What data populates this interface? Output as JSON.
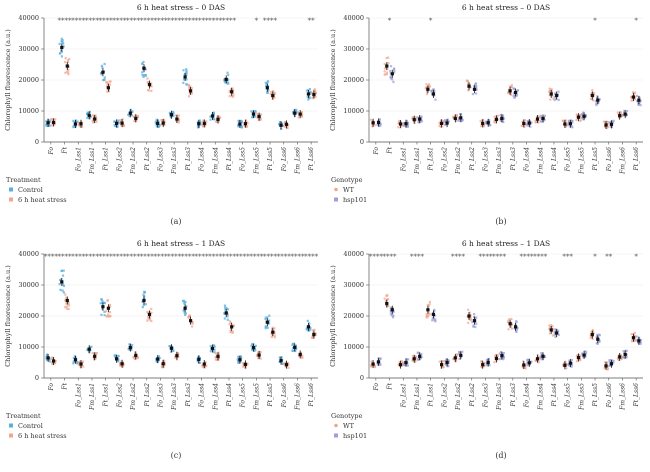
{
  "colors": {
    "control": "#5aaee0",
    "heat": "#f3a58e",
    "wt": "#f3a58e",
    "hsp101": "#9aa0d8",
    "mean": "#111111"
  },
  "chart_data": [
    {
      "type": "scatter",
      "panel_label": "(a)",
      "title": "6 h heat stress – 0 DAS",
      "ylabel": "Chlorophyll fluorescence (a.u.)",
      "ylim": [
        0,
        40000
      ],
      "yticks": [
        "0",
        "10000",
        "20000",
        "30000",
        "40000"
      ],
      "categories": [
        "Fo",
        "Ft",
        "Fo_Lss1",
        "Fm_Lss1",
        "Ft_Lss1",
        "Fo_Lss2",
        "Fm_Lss2",
        "Ft_Lss2",
        "Fo_Lss3",
        "Fm_Lss3",
        "Ft_Lss3",
        "Fo_Lss4",
        "Fm_Lss4",
        "Ft_Lss4",
        "Fo_Lss5",
        "Fm_Lss5",
        "Ft_Lss5",
        "Fo_Lss6",
        "Fm_Lss6",
        "Ft_Lss6"
      ],
      "stars": [
        "",
        "****",
        "****",
        "****",
        "****",
        "****",
        "****",
        "****",
        "****",
        "****",
        "****",
        "****",
        "****",
        "****",
        "",
        "*",
        "****",
        "",
        "",
        "**"
      ],
      "legend_title": "Treatment",
      "series": [
        {
          "name": "Control",
          "color_key": "control",
          "values": [
            6200,
            30500,
            5800,
            8600,
            22500,
            6000,
            9300,
            23800,
            6000,
            8800,
            21000,
            5900,
            8400,
            20200,
            5800,
            9000,
            17500,
            5400,
            9300,
            15500
          ]
        },
        {
          "name": "6 h heat stress",
          "color_key": "heat",
          "values": [
            6300,
            24500,
            5900,
            7400,
            17500,
            6100,
            7600,
            18500,
            6100,
            7400,
            16500,
            6000,
            7300,
            16200,
            5900,
            8200,
            15000,
            5700,
            9000,
            15300
          ]
        }
      ]
    },
    {
      "type": "scatter",
      "panel_label": "(b)",
      "title": "6 h heat stress – 0 DAS",
      "ylabel": "Chlorophyll fluorescence (a.u.)",
      "ylim": [
        0,
        40000
      ],
      "yticks": [
        "0",
        "10000",
        "20000",
        "30000",
        "40000"
      ],
      "categories": [
        "Fo",
        "Ft",
        "Fo_Lss1",
        "Fm_Lss1",
        "Ft_Lss1",
        "Fo_Lss2",
        "Fm_Lss2",
        "Ft_Lss2",
        "Fo_Lss3",
        "Fm_Lss3",
        "Ft_Lss3",
        "Fo_Lss4",
        "Fm_Lss4",
        "Ft_Lss4",
        "Fo_Lss5",
        "Fm_Lss5",
        "Ft_Lss5",
        "Fo_Lss6",
        "Fm_Lss6",
        "Ft_Lss6"
      ],
      "stars": [
        "",
        "*",
        "",
        "",
        "*",
        "",
        "",
        "",
        "",
        "",
        "",
        "",
        "",
        "",
        "",
        "",
        "*",
        "",
        "",
        "*"
      ],
      "legend_title": "Genotype",
      "series": [
        {
          "name": "WT",
          "color_key": "wt",
          "values": [
            6200,
            24500,
            5800,
            7200,
            17000,
            6000,
            7600,
            18000,
            6000,
            7300,
            16500,
            6000,
            7400,
            15500,
            5800,
            8000,
            15000,
            5500,
            8500,
            14500
          ]
        },
        {
          "name": "hsp101",
          "color_key": "hsp101",
          "values": [
            6300,
            22000,
            5900,
            7400,
            15500,
            6100,
            7800,
            17000,
            6200,
            7600,
            16000,
            6100,
            7600,
            15000,
            5900,
            8300,
            13500,
            5700,
            9000,
            13500
          ]
        }
      ]
    },
    {
      "type": "scatter",
      "panel_label": "(c)",
      "title": "6 h heat stress – 1 DAS",
      "ylabel": "Chlorophyll fluorescence (a.u.)",
      "ylim": [
        0,
        40000
      ],
      "yticks": [
        "0",
        "10000",
        "20000",
        "30000",
        "40000"
      ],
      "categories": [
        "Fo",
        "Ft",
        "Fo_Lss1",
        "Fm_Lss1",
        "Ft_Lss1",
        "Fo_Lss2",
        "Fm_Lss2",
        "Ft_Lss2",
        "Fo_Lss3",
        "Fm_Lss3",
        "Ft_Lss3",
        "Fo_Lss4",
        "Fm_Lss4",
        "Ft_Lss4",
        "Fo_Lss5",
        "Fm_Lss5",
        "Ft_Lss5",
        "Fo_Lss6",
        "Fm_Lss6",
        "Ft_Lss6"
      ],
      "stars": [
        "****",
        "****",
        "****",
        "****",
        "****",
        "****",
        "****",
        "****",
        "****",
        "****",
        "****",
        "****",
        "****",
        "****",
        "****",
        "****",
        "****",
        "****",
        "****",
        "****"
      ],
      "legend_title": "Treatment",
      "series": [
        {
          "name": "Control",
          "color_key": "control",
          "values": [
            6500,
            31000,
            5900,
            9300,
            23000,
            6200,
            9800,
            25000,
            6100,
            9600,
            22500,
            6000,
            9500,
            21000,
            5900,
            9800,
            18000,
            5600,
            9900,
            16500
          ]
        },
        {
          "name": "6 h heat stress",
          "color_key": "heat",
          "values": [
            5500,
            25000,
            4500,
            7000,
            22500,
            4600,
            7300,
            20500,
            4600,
            7200,
            18500,
            4500,
            7000,
            16500,
            4400,
            7400,
            14800,
            4300,
            7600,
            14000
          ]
        }
      ]
    },
    {
      "type": "scatter",
      "panel_label": "(d)",
      "title": "6 h heat stress – 1 DAS",
      "ylabel": "Chlorophyll fluorescence (a.u.)",
      "ylim": [
        0,
        40000
      ],
      "yticks": [
        "0",
        "10000",
        "20000",
        "30000",
        "40000"
      ],
      "categories": [
        "Fo",
        "Ft",
        "Fo_Lss1",
        "Fm_Lss1",
        "Ft_Lss1",
        "Fo_Lss2",
        "Fm_Lss2",
        "Ft_Lss2",
        "Fo_Lss3",
        "Fm_Lss3",
        "Ft_Lss3",
        "Fo_Lss4",
        "Fm_Lss4",
        "Ft_Lss4",
        "Fo_Lss5",
        "Fm_Lss5",
        "Ft_Lss5",
        "Fo_Lss6",
        "Fm_Lss6",
        "Ft_Lss6"
      ],
      "stars": [
        "****",
        "****",
        "",
        "****",
        "",
        "",
        "****",
        "",
        "****",
        "****",
        "",
        "****",
        "****",
        "",
        "***",
        "",
        "*",
        "**",
        "",
        "*"
      ],
      "legend_title": "Genotype",
      "series": [
        {
          "name": "WT",
          "color_key": "wt",
          "values": [
            4500,
            24000,
            4300,
            6200,
            22000,
            4300,
            6500,
            20000,
            4300,
            6300,
            17500,
            4200,
            6200,
            15500,
            4100,
            6600,
            14000,
            3900,
            6800,
            13000
          ]
        },
        {
          "name": "hsp101",
          "color_key": "hsp101",
          "values": [
            5200,
            22000,
            5000,
            7000,
            20500,
            5000,
            7300,
            18500,
            5000,
            7200,
            16500,
            4900,
            7000,
            14500,
            4800,
            7400,
            12500,
            4600,
            7600,
            12000
          ]
        }
      ]
    }
  ]
}
